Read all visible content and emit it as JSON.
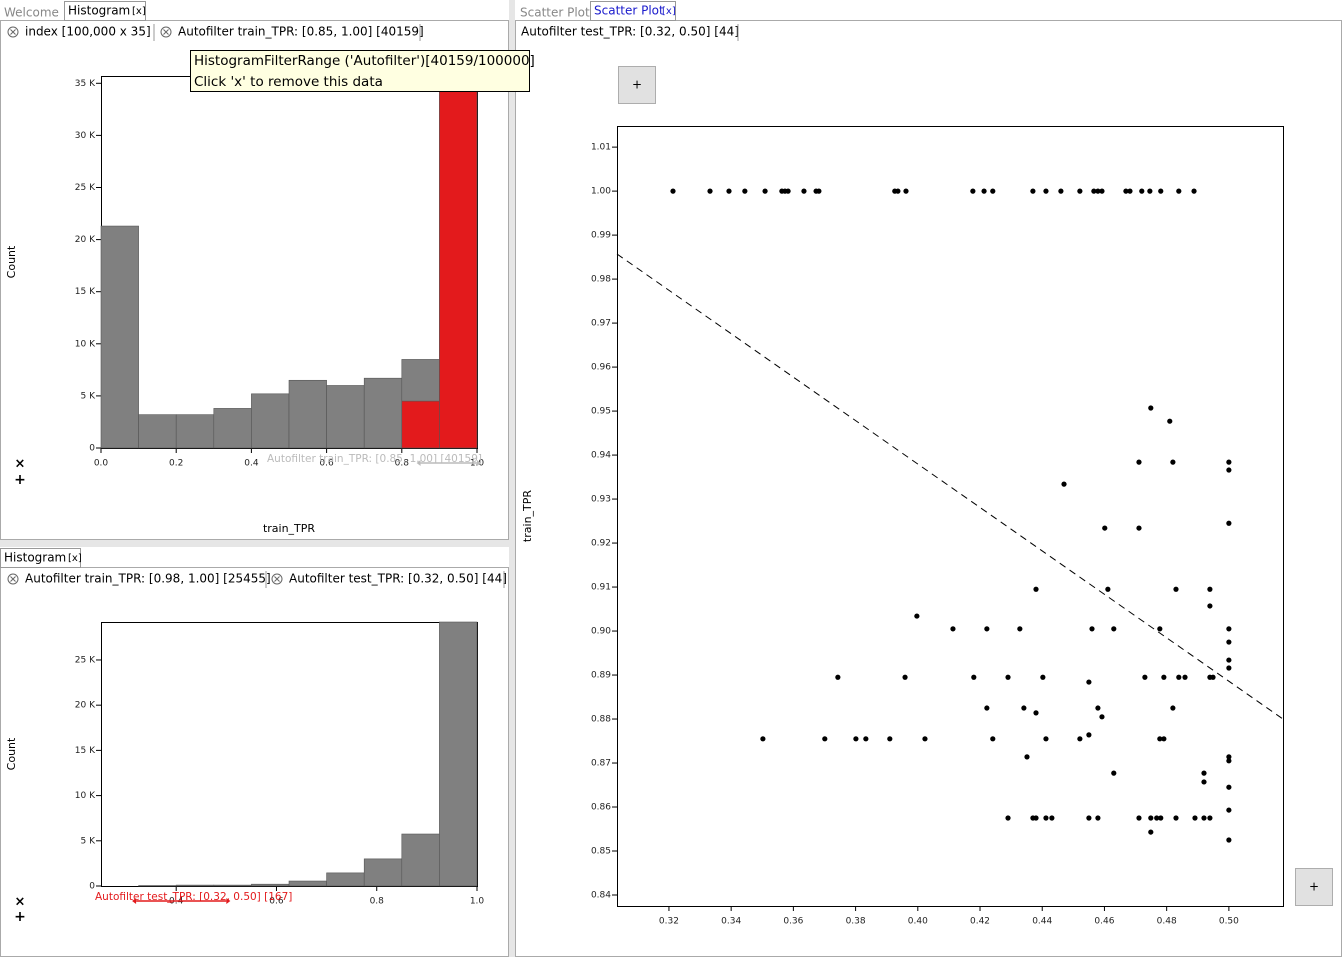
{
  "left_top": {
    "tabs": [
      "Welcome",
      "Histogram"
    ],
    "close": "[x]",
    "chips": [
      "index  [100,000 x 35]",
      "Autofilter train_TPR: [0.85, 1.00] [40159]"
    ],
    "tooltip": [
      "HistogramFilterRange ('Autofilter')[40159/100000]",
      "Click 'x' to remove this data"
    ],
    "controls": [
      "×",
      "+"
    ]
  },
  "left_bottom": {
    "tabs": [
      "Histogram"
    ],
    "close": "[x]",
    "chips": [
      "Autofilter train_TPR: [0.98, 1.00] [25455]",
      "Autofilter test_TPR: [0.32, 0.50] [44]"
    ],
    "controls": [
      "×",
      "+"
    ]
  },
  "right": {
    "tabs": [
      "Scatter Plot",
      "Scatter Plot"
    ],
    "close": "[x]",
    "chips": [
      "Autofilter test_TPR: [0.32, 0.50] [44]"
    ],
    "buttons": [
      "+",
      "+"
    ]
  },
  "chart_data": [
    {
      "type": "histogram",
      "xlabel": "train_TPR",
      "ylabel": "Count",
      "bins": [
        0,
        0.1,
        0.2,
        0.3,
        0.4,
        0.5,
        0.6,
        0.7,
        0.8,
        0.9,
        1.0
      ],
      "series": [
        {
          "color": "#808080",
          "values": [
            21300,
            3200,
            3200,
            3800,
            5200,
            6500,
            6000,
            6700,
            8500,
            35600
          ]
        },
        {
          "color": "#e31a1c",
          "values": [
            null,
            null,
            null,
            null,
            null,
            null,
            null,
            null,
            4500,
            35600
          ]
        }
      ],
      "xlim": [
        0,
        1
      ],
      "ylim": [
        0,
        35700
      ],
      "xticks": [
        {
          "value": 0,
          "label": "0.0"
        },
        0.2,
        0.4,
        0.6,
        0.8,
        {
          "value": 1,
          "label": "1.0"
        }
      ],
      "yticks": [
        0,
        {
          "value": 5000,
          "label": "5 K"
        },
        {
          "value": 10000,
          "label": "10 K"
        },
        {
          "value": 15000,
          "label": "15 K"
        },
        {
          "value": 20000,
          "label": "20 K"
        },
        {
          "value": 25000,
          "label": "25 K"
        },
        {
          "value": 30000,
          "label": "30 K"
        },
        {
          "value": 35000,
          "label": "35 K"
        }
      ],
      "annotation": "Autofilter train_TPR: [0.85, 1.00] [40159]",
      "annotation_range": [
        0.85,
        1.0
      ],
      "annotation_color": "#bbbbbb"
    },
    {
      "type": "histogram",
      "ylabel": "Count",
      "bins": [
        0.25,
        0.325,
        0.4,
        0.475,
        0.55,
        0.625,
        0.7,
        0.775,
        0.85,
        0.925,
        1.0
      ],
      "series": [
        {
          "color": "#808080",
          "values": [
            0,
            50,
            100,
            100,
            200,
            550,
            1450,
            3000,
            5750,
            29200
          ]
        }
      ],
      "xlim": [
        0.25,
        1.0
      ],
      "ylim": [
        0,
        29200
      ],
      "xticks": [
        0.4,
        0.6,
        0.8,
        {
          "value": 1,
          "label": "1.0"
        }
      ],
      "yticks": [
        0,
        {
          "value": 5000,
          "label": "5 K"
        },
        {
          "value": 10000,
          "label": "10 K"
        },
        {
          "value": 15000,
          "label": "15 K"
        },
        {
          "value": 20000,
          "label": "20 K"
        },
        {
          "value": 25000,
          "label": "25 K"
        }
      ],
      "annotation": "Autofilter test_TPR: [0.32, 0.50] [167]",
      "annotation_range": [
        0.32,
        0.5
      ],
      "annotation_color": "#e31a1c"
    },
    {
      "type": "scatter",
      "ylabel": "train_TPR",
      "color": "#000000",
      "x": [
        0.3213,
        0.3332,
        0.3393,
        0.3444,
        0.3509,
        0.3563,
        0.3573,
        0.3583,
        0.3634,
        0.3673,
        0.3682,
        0.3926,
        0.3936,
        0.3962,
        0.4177,
        0.4213,
        0.4241,
        0.437,
        0.4412,
        0.446,
        0.4521,
        0.4566,
        0.4579,
        0.4592,
        0.4669,
        0.4682,
        0.472,
        0.4746,
        0.4781,
        0.4839,
        0.4888,
        0.4749,
        0.481,
        0.4711,
        0.482,
        0.5,
        0.5,
        0.447,
        0.4601,
        0.4711,
        0.5,
        0.438,
        0.4611,
        0.483,
        0.4939,
        0.4939,
        0.3997,
        0.4113,
        0.4222,
        0.4328,
        0.456,
        0.463,
        0.4778,
        0.5,
        0.5,
        0.5,
        0.5,
        0.3743,
        0.3959,
        0.418,
        0.429,
        0.4402,
        0.473,
        0.4791,
        0.4839,
        0.4859,
        0.4939,
        0.4949,
        0.455,
        0.4222,
        0.4341,
        0.438,
        0.4579,
        0.4592,
        0.482,
        0.3502,
        0.3701,
        0.3801,
        0.3833,
        0.391,
        0.4023,
        0.4241,
        0.4412,
        0.4521,
        0.455,
        0.4778,
        0.4791,
        0.4351,
        0.5,
        0.5,
        0.463,
        0.492,
        0.492,
        0.5,
        0.5,
        0.429,
        0.437,
        0.438,
        0.4412,
        0.4431,
        0.455,
        0.4579,
        0.4711,
        0.4749,
        0.4768,
        0.4781,
        0.483,
        0.4891,
        0.492,
        0.4939,
        0.4749,
        0.5
      ],
      "y": [
        1.0,
        1.0,
        1.0,
        1.0,
        1.0,
        1.0,
        1.0,
        1.0,
        1.0,
        1.0,
        1.0,
        1.0,
        1.0,
        1.0,
        1.0,
        1.0,
        1.0,
        1.0,
        1.0,
        1.0,
        1.0,
        1.0,
        1.0,
        1.0,
        1.0,
        1.0,
        1.0,
        1.0,
        1.0,
        1.0,
        1.0,
        0.9507,
        0.9477,
        0.9384,
        0.9384,
        0.9384,
        0.9366,
        0.9334,
        0.9234,
        0.9234,
        0.9245,
        0.9095,
        0.9095,
        0.9095,
        0.9095,
        0.9057,
        0.9034,
        0.9005,
        0.9005,
        0.9005,
        0.9005,
        0.9005,
        0.9005,
        0.9005,
        0.8975,
        0.8934,
        0.8916,
        0.8895,
        0.8895,
        0.8895,
        0.8895,
        0.8895,
        0.8895,
        0.8895,
        0.8895,
        0.8895,
        0.8895,
        0.8895,
        0.8884,
        0.8825,
        0.8825,
        0.8814,
        0.8825,
        0.8805,
        0.8825,
        0.8755,
        0.8755,
        0.8755,
        0.8755,
        0.8755,
        0.8755,
        0.8755,
        0.8755,
        0.8755,
        0.8764,
        0.8755,
        0.8755,
        0.8714,
        0.8714,
        0.8705,
        0.8677,
        0.8677,
        0.8657,
        0.8645,
        0.8593,
        0.8575,
        0.8575,
        0.8575,
        0.8575,
        0.8575,
        0.8575,
        0.8575,
        0.8575,
        0.8575,
        0.8575,
        0.8575,
        0.8575,
        0.8575,
        0.8575,
        0.8575,
        0.8543,
        0.8525
      ],
      "trend_line": {
        "x": [
          0.3033,
          0.5174
        ],
        "y": [
          0.9857,
          0.88
        ]
      },
      "xlim": [
        0.3033,
        0.5174
      ],
      "ylim": [
        0.8375,
        1.0148
      ],
      "xticks": [
        0.32,
        0.34,
        0.36,
        0.38,
        {
          "value": 0.4,
          "label": "0.40"
        },
        0.42,
        0.44,
        0.46,
        0.48,
        {
          "value": 0.5,
          "label": "0.50"
        }
      ],
      "yticks": [
        0.84,
        0.85,
        0.86,
        0.87,
        0.88,
        0.89,
        {
          "value": 0.9,
          "label": "0.90"
        },
        0.91,
        0.92,
        0.93,
        0.94,
        0.95,
        0.96,
        0.97,
        0.98,
        0.99,
        {
          "value": 1,
          "label": "1.00"
        },
        1.01
      ]
    }
  ]
}
